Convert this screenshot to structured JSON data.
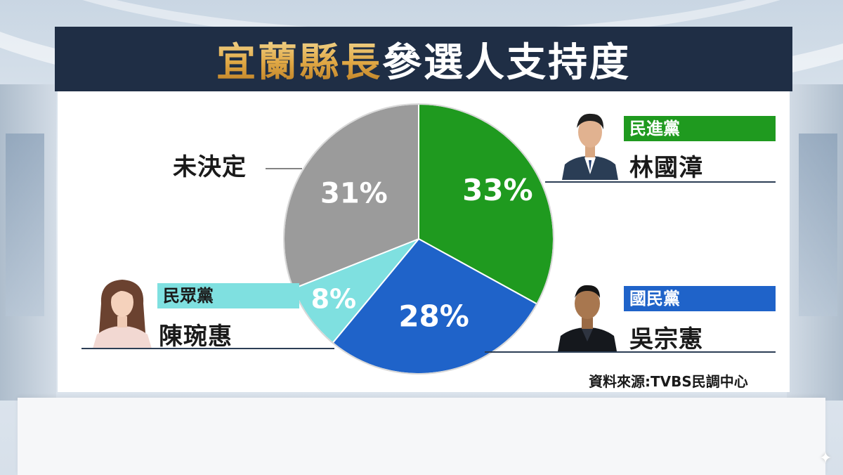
{
  "title": {
    "main": "宜蘭縣長",
    "sub": "參選人支持度"
  },
  "source": "資料來源:TVBS民調中心",
  "colors": {
    "dpp": "#1f9a1f",
    "kmt": "#1f63c9",
    "tpp": "#7fe0e0",
    "undecided": "#9b9b9b",
    "title_bg": "#1f2e45"
  },
  "candidates": {
    "dpp": {
      "party": "民進黨",
      "name": "林國漳",
      "percent": "33%"
    },
    "kmt": {
      "party": "國民黨",
      "name": "吳宗憲",
      "percent": "28%"
    },
    "tpp": {
      "party": "民眾黨",
      "name": "陳琬惠",
      "percent": "8%"
    },
    "undecided": {
      "label": "未決定",
      "percent": "31%"
    }
  },
  "chart_data": {
    "type": "pie",
    "title": "宜蘭縣長參選人支持度",
    "categories": [
      "林國漳",
      "吳宗憲",
      "陳琬惠",
      "未決定"
    ],
    "values": [
      33,
      28,
      8,
      31
    ],
    "labels": [
      "33%",
      "28%",
      "8%",
      "31%"
    ],
    "colors": [
      "#1f9a1f",
      "#1f63c9",
      "#7fe0e0",
      "#9b9b9b"
    ],
    "start": "top, clockwise"
  }
}
